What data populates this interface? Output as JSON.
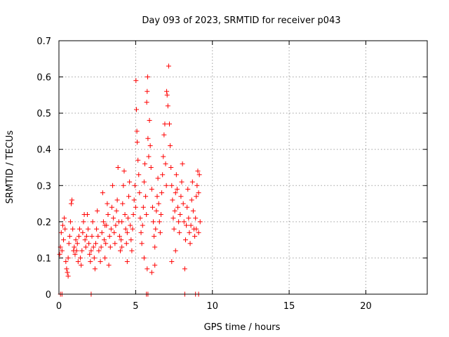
{
  "chart_data": {
    "type": "scatter",
    "title": "Day 093 of 2023, SRMTID for receiver p043",
    "xlabel": "GPS time / hours",
    "ylabel": "SRMTID / TECUs",
    "xlim": [
      0,
      24
    ],
    "ylim": [
      0,
      0.7
    ],
    "xticks": [
      0,
      5,
      10,
      15,
      20
    ],
    "xtick_labels": [
      "0",
      "5",
      "10",
      "15",
      "20"
    ],
    "yticks": [
      0,
      0.1,
      0.2,
      0.3,
      0.4,
      0.5,
      0.6,
      0.7
    ],
    "ytick_labels": [
      "0",
      "0.1",
      "0.2",
      "0.3",
      "0.4",
      "0.5",
      "0.6",
      "0.7"
    ],
    "grid": true,
    "marker": "+",
    "color": "#ff0000",
    "series": [
      {
        "name": "p043",
        "points": [
          [
            0.05,
            0.11
          ],
          [
            0.1,
            0.13
          ],
          [
            0.15,
            0.17
          ],
          [
            0.2,
            0.12
          ],
          [
            0.25,
            0.19
          ],
          [
            0.3,
            0.15
          ],
          [
            0.35,
            0.21
          ],
          [
            0.4,
            0.18
          ],
          [
            0.45,
            0.09
          ],
          [
            0.5,
            0.07
          ],
          [
            0.55,
            0.06
          ],
          [
            0.6,
            0.1
          ],
          [
            0.65,
            0.14
          ],
          [
            0.7,
            0.16
          ],
          [
            0.75,
            0.2
          ],
          [
            0.8,
            0.25
          ],
          [
            0.85,
            0.26
          ],
          [
            0.9,
            0.18
          ],
          [
            0.95,
            0.12
          ],
          [
            1.0,
            0.13
          ],
          [
            1.05,
            0.11
          ],
          [
            1.1,
            0.15
          ],
          [
            1.15,
            0.12
          ],
          [
            1.2,
            0.14
          ],
          [
            1.3,
            0.16
          ],
          [
            1.35,
            0.18
          ],
          [
            1.4,
            0.1
          ],
          [
            1.45,
            0.08
          ],
          [
            1.5,
            0.12
          ],
          [
            1.55,
            0.17
          ],
          [
            1.6,
            0.2
          ],
          [
            1.65,
            0.22
          ],
          [
            1.7,
            0.15
          ],
          [
            1.75,
            0.13
          ],
          [
            1.8,
            0.16
          ],
          [
            1.9,
            0.18
          ],
          [
            1.95,
            0.14
          ],
          [
            2.0,
            0.11
          ],
          [
            2.05,
            0.09
          ],
          [
            2.1,
            0.12
          ],
          [
            2.15,
            0.16
          ],
          [
            2.2,
            0.2
          ],
          [
            2.25,
            0.13
          ],
          [
            2.3,
            0.1
          ],
          [
            2.4,
            0.14
          ],
          [
            2.45,
            0.18
          ],
          [
            2.5,
            0.23
          ],
          [
            2.55,
            0.16
          ],
          [
            2.6,
            0.12
          ],
          [
            2.7,
            0.09
          ],
          [
            2.75,
            0.13
          ],
          [
            2.8,
            0.17
          ],
          [
            2.85,
            0.28
          ],
          [
            2.9,
            0.2
          ],
          [
            2.95,
            0.15
          ],
          [
            3.0,
            0.1
          ],
          [
            3.05,
            0.14
          ],
          [
            3.1,
            0.19
          ],
          [
            3.15,
            0.25
          ],
          [
            3.2,
            0.22
          ],
          [
            3.3,
            0.16
          ],
          [
            3.35,
            0.13
          ],
          [
            3.4,
            0.18
          ],
          [
            3.45,
            0.24
          ],
          [
            3.5,
            0.3
          ],
          [
            3.55,
            0.21
          ],
          [
            3.6,
            0.17
          ],
          [
            3.65,
            0.14
          ],
          [
            3.7,
            0.19
          ],
          [
            3.75,
            0.23
          ],
          [
            3.8,
            0.26
          ],
          [
            3.85,
            0.35
          ],
          [
            3.9,
            0.2
          ],
          [
            3.95,
            0.16
          ],
          [
            4.0,
            0.12
          ],
          [
            4.05,
            0.15
          ],
          [
            4.1,
            0.2
          ],
          [
            4.15,
            0.25
          ],
          [
            4.2,
            0.3
          ],
          [
            4.25,
            0.34
          ],
          [
            4.3,
            0.22
          ],
          [
            4.35,
            0.18
          ],
          [
            4.4,
            0.14
          ],
          [
            4.45,
            0.17
          ],
          [
            4.5,
            0.21
          ],
          [
            4.55,
            0.27
          ],
          [
            4.6,
            0.31
          ],
          [
            4.65,
            0.19
          ],
          [
            4.7,
            0.15
          ],
          [
            4.75,
            0.12
          ],
          [
            4.8,
            0.18
          ],
          [
            4.85,
            0.22
          ],
          [
            4.9,
            0.26
          ],
          [
            4.95,
            0.3
          ],
          [
            5.0,
            0.24
          ],
          [
            5.02,
            0.59
          ],
          [
            5.05,
            0.51
          ],
          [
            5.08,
            0.45
          ],
          [
            5.1,
            0.42
          ],
          [
            5.15,
            0.37
          ],
          [
            5.2,
            0.33
          ],
          [
            5.25,
            0.28
          ],
          [
            5.3,
            0.21
          ],
          [
            5.35,
            0.17
          ],
          [
            5.4,
            0.14
          ],
          [
            5.45,
            0.19
          ],
          [
            5.5,
            0.24
          ],
          [
            5.55,
            0.31
          ],
          [
            5.6,
            0.36
          ],
          [
            5.65,
            0.27
          ],
          [
            5.7,
            0.22
          ],
          [
            5.72,
            0.53
          ],
          [
            5.75,
            0.56
          ],
          [
            5.78,
            0.6
          ],
          [
            5.8,
            0.43
          ],
          [
            5.85,
            0.38
          ],
          [
            5.9,
            0.48
          ],
          [
            5.95,
            0.41
          ],
          [
            6.0,
            0.35
          ],
          [
            6.05,
            0.29
          ],
          [
            6.1,
            0.24
          ],
          [
            6.15,
            0.2
          ],
          [
            6.2,
            0.16
          ],
          [
            6.25,
            0.13
          ],
          [
            6.3,
            0.18
          ],
          [
            6.35,
            0.23
          ],
          [
            6.4,
            0.27
          ],
          [
            6.45,
            0.32
          ],
          [
            6.5,
            0.25
          ],
          [
            6.55,
            0.2
          ],
          [
            6.6,
            0.17
          ],
          [
            6.65,
            0.22
          ],
          [
            6.7,
            0.28
          ],
          [
            6.75,
            0.33
          ],
          [
            6.8,
            0.38
          ],
          [
            6.85,
            0.44
          ],
          [
            6.9,
            0.47
          ],
          [
            6.95,
            0.36
          ],
          [
            7.0,
            0.3
          ],
          [
            7.02,
            0.56
          ],
          [
            7.05,
            0.55
          ],
          [
            7.1,
            0.52
          ],
          [
            7.15,
            0.63
          ],
          [
            7.2,
            0.47
          ],
          [
            7.25,
            0.41
          ],
          [
            7.3,
            0.35
          ],
          [
            7.35,
            0.3
          ],
          [
            7.4,
            0.26
          ],
          [
            7.45,
            0.21
          ],
          [
            7.5,
            0.18
          ],
          [
            7.55,
            0.23
          ],
          [
            7.6,
            0.28
          ],
          [
            7.65,
            0.33
          ],
          [
            7.7,
            0.29
          ],
          [
            7.75,
            0.24
          ],
          [
            7.8,
            0.2
          ],
          [
            7.85,
            0.17
          ],
          [
            7.9,
            0.22
          ],
          [
            7.95,
            0.27
          ],
          [
            8.0,
            0.31
          ],
          [
            8.05,
            0.36
          ],
          [
            8.1,
            0.25
          ],
          [
            8.15,
            0.2
          ],
          [
            8.2,
            0.07
          ],
          [
            8.25,
            0.15
          ],
          [
            8.3,
            0.19
          ],
          [
            8.35,
            0.24
          ],
          [
            8.4,
            0.29
          ],
          [
            8.45,
            0.21
          ],
          [
            8.5,
            0.17
          ],
          [
            8.55,
            0.14
          ],
          [
            8.6,
            0.19
          ],
          [
            8.65,
            0.26
          ],
          [
            8.7,
            0.31
          ],
          [
            8.75,
            0.23
          ],
          [
            8.8,
            0.18
          ],
          [
            8.85,
            0.16
          ],
          [
            8.9,
            0.21
          ],
          [
            8.95,
            0.27
          ],
          [
            9.0,
            0.3
          ],
          [
            9.05,
            0.34
          ],
          [
            9.1,
            0.28
          ],
          [
            9.15,
            0.33
          ],
          [
            9.2,
            0.2
          ],
          [
            0.6,
            0.05
          ],
          [
            1.25,
            0.09
          ],
          [
            1.85,
            0.22
          ],
          [
            2.35,
            0.07
          ],
          [
            3.25,
            0.08
          ],
          [
            4.45,
            0.09
          ],
          [
            5.55,
            0.1
          ],
          [
            6.25,
            0.08
          ],
          [
            7.35,
            0.09
          ],
          [
            8.95,
            0.18
          ],
          [
            9.1,
            0.17
          ],
          [
            5.75,
            0.07
          ],
          [
            6.05,
            0.06
          ],
          [
            7.6,
            0.12
          ],
          [
            4.1,
            0.13
          ],
          [
            3.0,
            0.19
          ]
        ]
      }
    ],
    "zero_points_x": [
      0.1,
      0.2,
      2.1,
      5.7,
      5.8,
      8.2,
      8.9,
      9.1
    ]
  }
}
